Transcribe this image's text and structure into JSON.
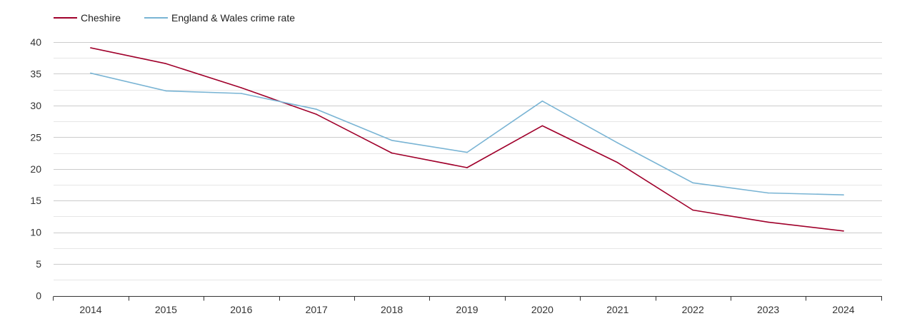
{
  "chart_data": {
    "type": "line",
    "title": "",
    "xlabel": "",
    "ylabel": "",
    "ylim": [
      0,
      40
    ],
    "yticks": [
      0,
      5,
      10,
      15,
      20,
      25,
      30,
      35,
      40
    ],
    "grid": true,
    "legend_position": "top-left",
    "categories": [
      "2014",
      "2015",
      "2016",
      "2017",
      "2018",
      "2019",
      "2020",
      "2021",
      "2022",
      "2023",
      "2024"
    ],
    "series": [
      {
        "name": "Cheshire",
        "color": "#a0002b",
        "values": [
          39.1,
          36.6,
          32.8,
          28.6,
          22.5,
          20.2,
          26.8,
          21.0,
          13.5,
          11.6,
          10.2
        ]
      },
      {
        "name": "England & Wales crime rate",
        "color": "#79b4d4",
        "values": [
          35.1,
          32.3,
          31.9,
          29.4,
          24.5,
          22.6,
          30.7,
          24.1,
          17.8,
          16.2,
          15.9
        ]
      }
    ]
  }
}
